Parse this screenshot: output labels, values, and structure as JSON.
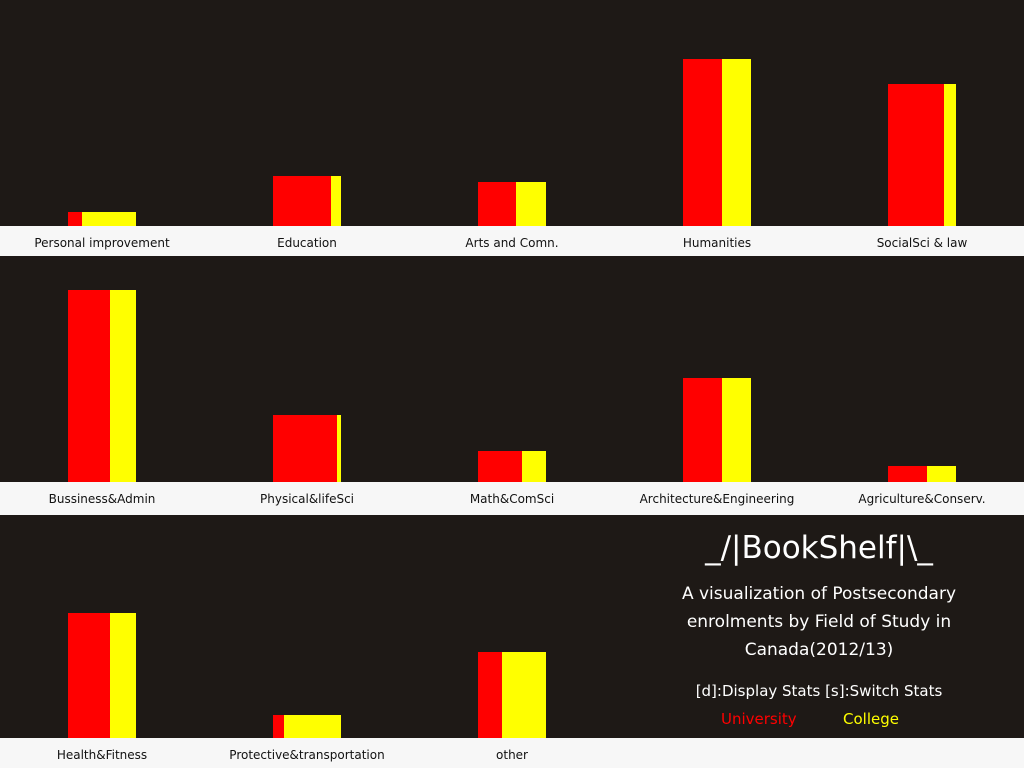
{
  "title": "_/|BookShelf|\\_",
  "subtitle": "A visualization of Postsecondary enrolments by Field of Study in Canada(2012/13)",
  "keys_hint": "[d]:Display Stats [s]:Switch Stats",
  "legend": {
    "university": "University",
    "college": "College"
  },
  "colors": {
    "university": "#ff0000",
    "college": "#ffff00",
    "background": "#1e1916",
    "shelf": "#f7f7f7",
    "text_light": "#ffffff",
    "text_dark": "#111111"
  },
  "chart_data": {
    "type": "bar",
    "series": [
      {
        "name": "University"
      },
      {
        "name": "College"
      }
    ],
    "categories": [
      "Personal improvement",
      "Education",
      "Arts and Comn.",
      "Humanities",
      "SocialSci & law",
      "Bussiness&Admin",
      "Physical&lifeSci",
      "Math&ComSci",
      "Architecture&Engineering",
      "Agriculture&Conserv.",
      "Health&Fitness",
      "Protective&transportation",
      "other"
    ],
    "university_share": [
      0.2,
      0.86,
      0.56,
      0.57,
      0.83,
      0.62,
      0.94,
      0.65,
      0.57,
      0.58,
      0.62,
      0.16,
      0.35
    ],
    "total_height": [
      14,
      50,
      44,
      167,
      142,
      192,
      67,
      31,
      104,
      16,
      125,
      23,
      86
    ]
  }
}
